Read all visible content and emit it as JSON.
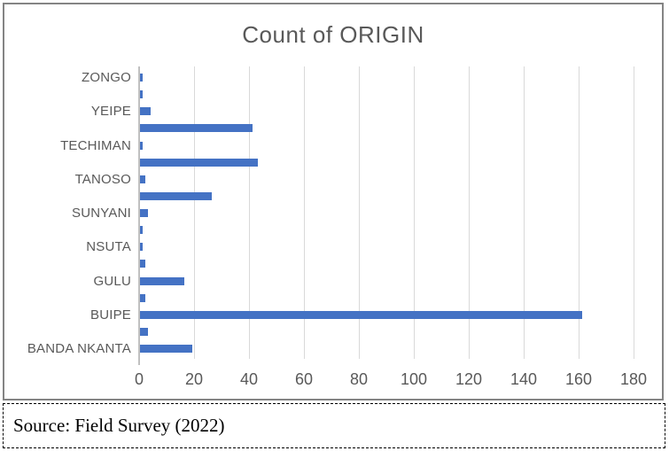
{
  "chart_data": {
    "type": "bar",
    "orientation": "horizontal",
    "title": "Count of ORIGIN",
    "grid": true,
    "legend_position": "none",
    "x_axis": {
      "min": 0,
      "max": 180,
      "tick_step": 20,
      "tick_labels": [
        "0",
        "20",
        "40",
        "60",
        "80",
        "100",
        "120",
        "140",
        "160",
        "180"
      ]
    },
    "note": "only every second category shows an axis label; blank labels are unlabeled bars",
    "bars": [
      {
        "label": "ZONGO",
        "value": 1
      },
      {
        "label": "",
        "value": 1
      },
      {
        "label": "YEIPE",
        "value": 4
      },
      {
        "label": "",
        "value": 41
      },
      {
        "label": "TECHIMAN",
        "value": 1
      },
      {
        "label": "",
        "value": 43
      },
      {
        "label": "TANOSO",
        "value": 2
      },
      {
        "label": "",
        "value": 26
      },
      {
        "label": "SUNYANI",
        "value": 3
      },
      {
        "label": "",
        "value": 1
      },
      {
        "label": "NSUTA",
        "value": 1
      },
      {
        "label": "",
        "value": 2
      },
      {
        "label": "GULU",
        "value": 16
      },
      {
        "label": "",
        "value": 2
      },
      {
        "label": "BUIPE",
        "value": 161
      },
      {
        "label": "",
        "value": 3
      },
      {
        "label": "BANDA NKANTA",
        "value": 19
      }
    ],
    "colors": {
      "bar": "#4472C4",
      "gridline": "#D9D9D9",
      "axis_line": "#C0C0C0",
      "text": "#595959",
      "chart_border": "#848484"
    }
  },
  "source_note": {
    "text": "Source: Field Survey (2022)"
  }
}
